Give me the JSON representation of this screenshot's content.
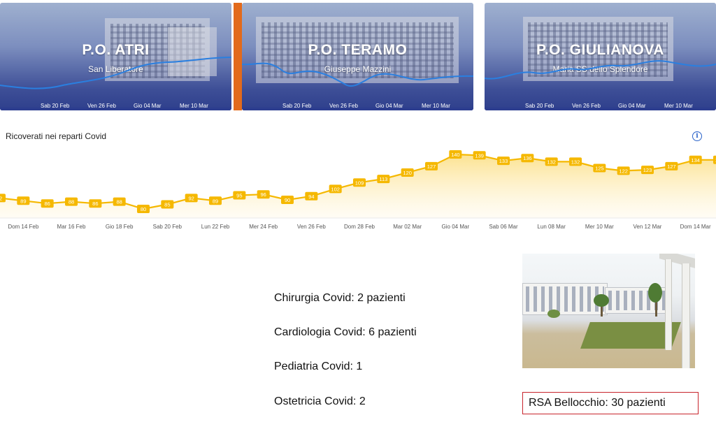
{
  "hospitals": [
    {
      "title": "P.O. ATRI",
      "subtitle": "San Liberatore",
      "ticks": [
        "Sab 20 Feb",
        "Ven 26 Feb",
        "Gio 04 Mar",
        "Mer 10 Mar"
      ]
    },
    {
      "title": "P.O. TERAMO",
      "subtitle": "Giuseppe Mazzini",
      "ticks": [
        "Sab 20 Feb",
        "Ven 26 Feb",
        "Gio 04 Mar",
        "Mer 10 Mar"
      ]
    },
    {
      "title": "P.O. GIULIANOVA",
      "subtitle": "Maria SS dello Splendore",
      "ticks": [
        "Sab 20 Feb",
        "Ven 26 Feb",
        "Gio 04 Mar",
        "Mer 10 Mar"
      ]
    }
  ],
  "chart": {
    "title": "Ricoverati nei reparti Covid",
    "info_icon": "info-icon"
  },
  "chart_data": {
    "type": "area",
    "title": "Ricoverati nei reparti Covid",
    "x_ticks": [
      "Dom 14 Feb",
      "Mar 16 Feb",
      "Gio 18 Feb",
      "Sab 20 Feb",
      "Lun 22 Feb",
      "Mer 24 Feb",
      "Ven 26 Feb",
      "Dom 28 Feb",
      "Mar 02 Mar",
      "Gio 04 Mar",
      "Sab 06 Mar",
      "Lun 08 Mar",
      "Mer 10 Mar",
      "Ven 12 Mar",
      "Dom 14 Mar"
    ],
    "x": [
      "Sab 13 Feb",
      "Dom 14 Feb",
      "Lun 15 Feb",
      "Mar 16 Feb",
      "Mer 17 Feb",
      "Gio 18 Feb",
      "Ven 19 Feb",
      "Sab 20 Feb",
      "Dom 21 Feb",
      "Lun 22 Feb",
      "Mar 23 Feb",
      "Mer 24 Feb",
      "Gio 25 Feb",
      "Ven 26 Feb",
      "Sab 27 Feb",
      "Dom 28 Feb",
      "Lun 01 Mar",
      "Mar 02 Mar",
      "Mer 03 Mar",
      "Gio 04 Mar",
      "Ven 05 Mar",
      "Sab 06 Mar",
      "Dom 07 Mar",
      "Lun 08 Mar",
      "Mar 09 Mar",
      "Mer 10 Mar",
      "Gio 11 Mar",
      "Ven 12 Mar",
      "Sab 13 Mar",
      "Dom 14 Mar",
      "Lun 15 Mar"
    ],
    "series": [
      {
        "values": [
          92,
          89,
          86,
          88,
          86,
          88,
          80,
          85,
          92,
          89,
          95,
          96,
          90,
          94,
          102,
          109,
          113,
          120,
          127,
          140,
          139,
          133,
          136,
          132,
          132,
          125,
          122,
          123,
          127,
          134,
          134
        ]
      }
    ],
    "ylim": [
      70,
      150
    ],
    "color": "#f5b800"
  },
  "departments": [
    {
      "label": "Chirurgia Covid: 2 pazienti"
    },
    {
      "label": "Cardiologia Covid: 6 pazienti"
    },
    {
      "label": "Pediatria Covid: 1"
    },
    {
      "label": "Ostetricia Covid: 2"
    }
  ],
  "rsa": {
    "label": "RSA Bellocchio: 30 pazienti",
    "border_color": "#c8242c"
  }
}
